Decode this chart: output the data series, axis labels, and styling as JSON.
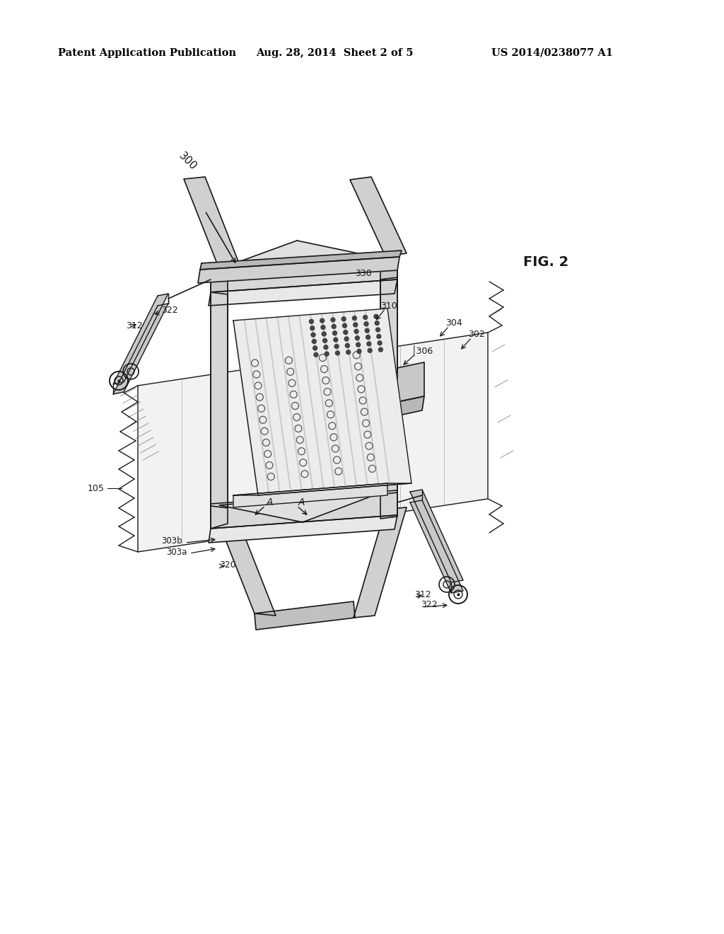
{
  "background_color": "#ffffff",
  "header_left": "Patent Application Publication",
  "header_center": "Aug. 28, 2014  Sheet 2 of 5",
  "header_right": "US 2014/0238077 A1",
  "fig_label": "FIG. 2",
  "line_color": "#1a1a1a",
  "gray_fill": "#e0e0e0",
  "dark_fill": "#b0b0b0",
  "light_fill": "#f0f0f0",
  "white_fill": "#ffffff"
}
